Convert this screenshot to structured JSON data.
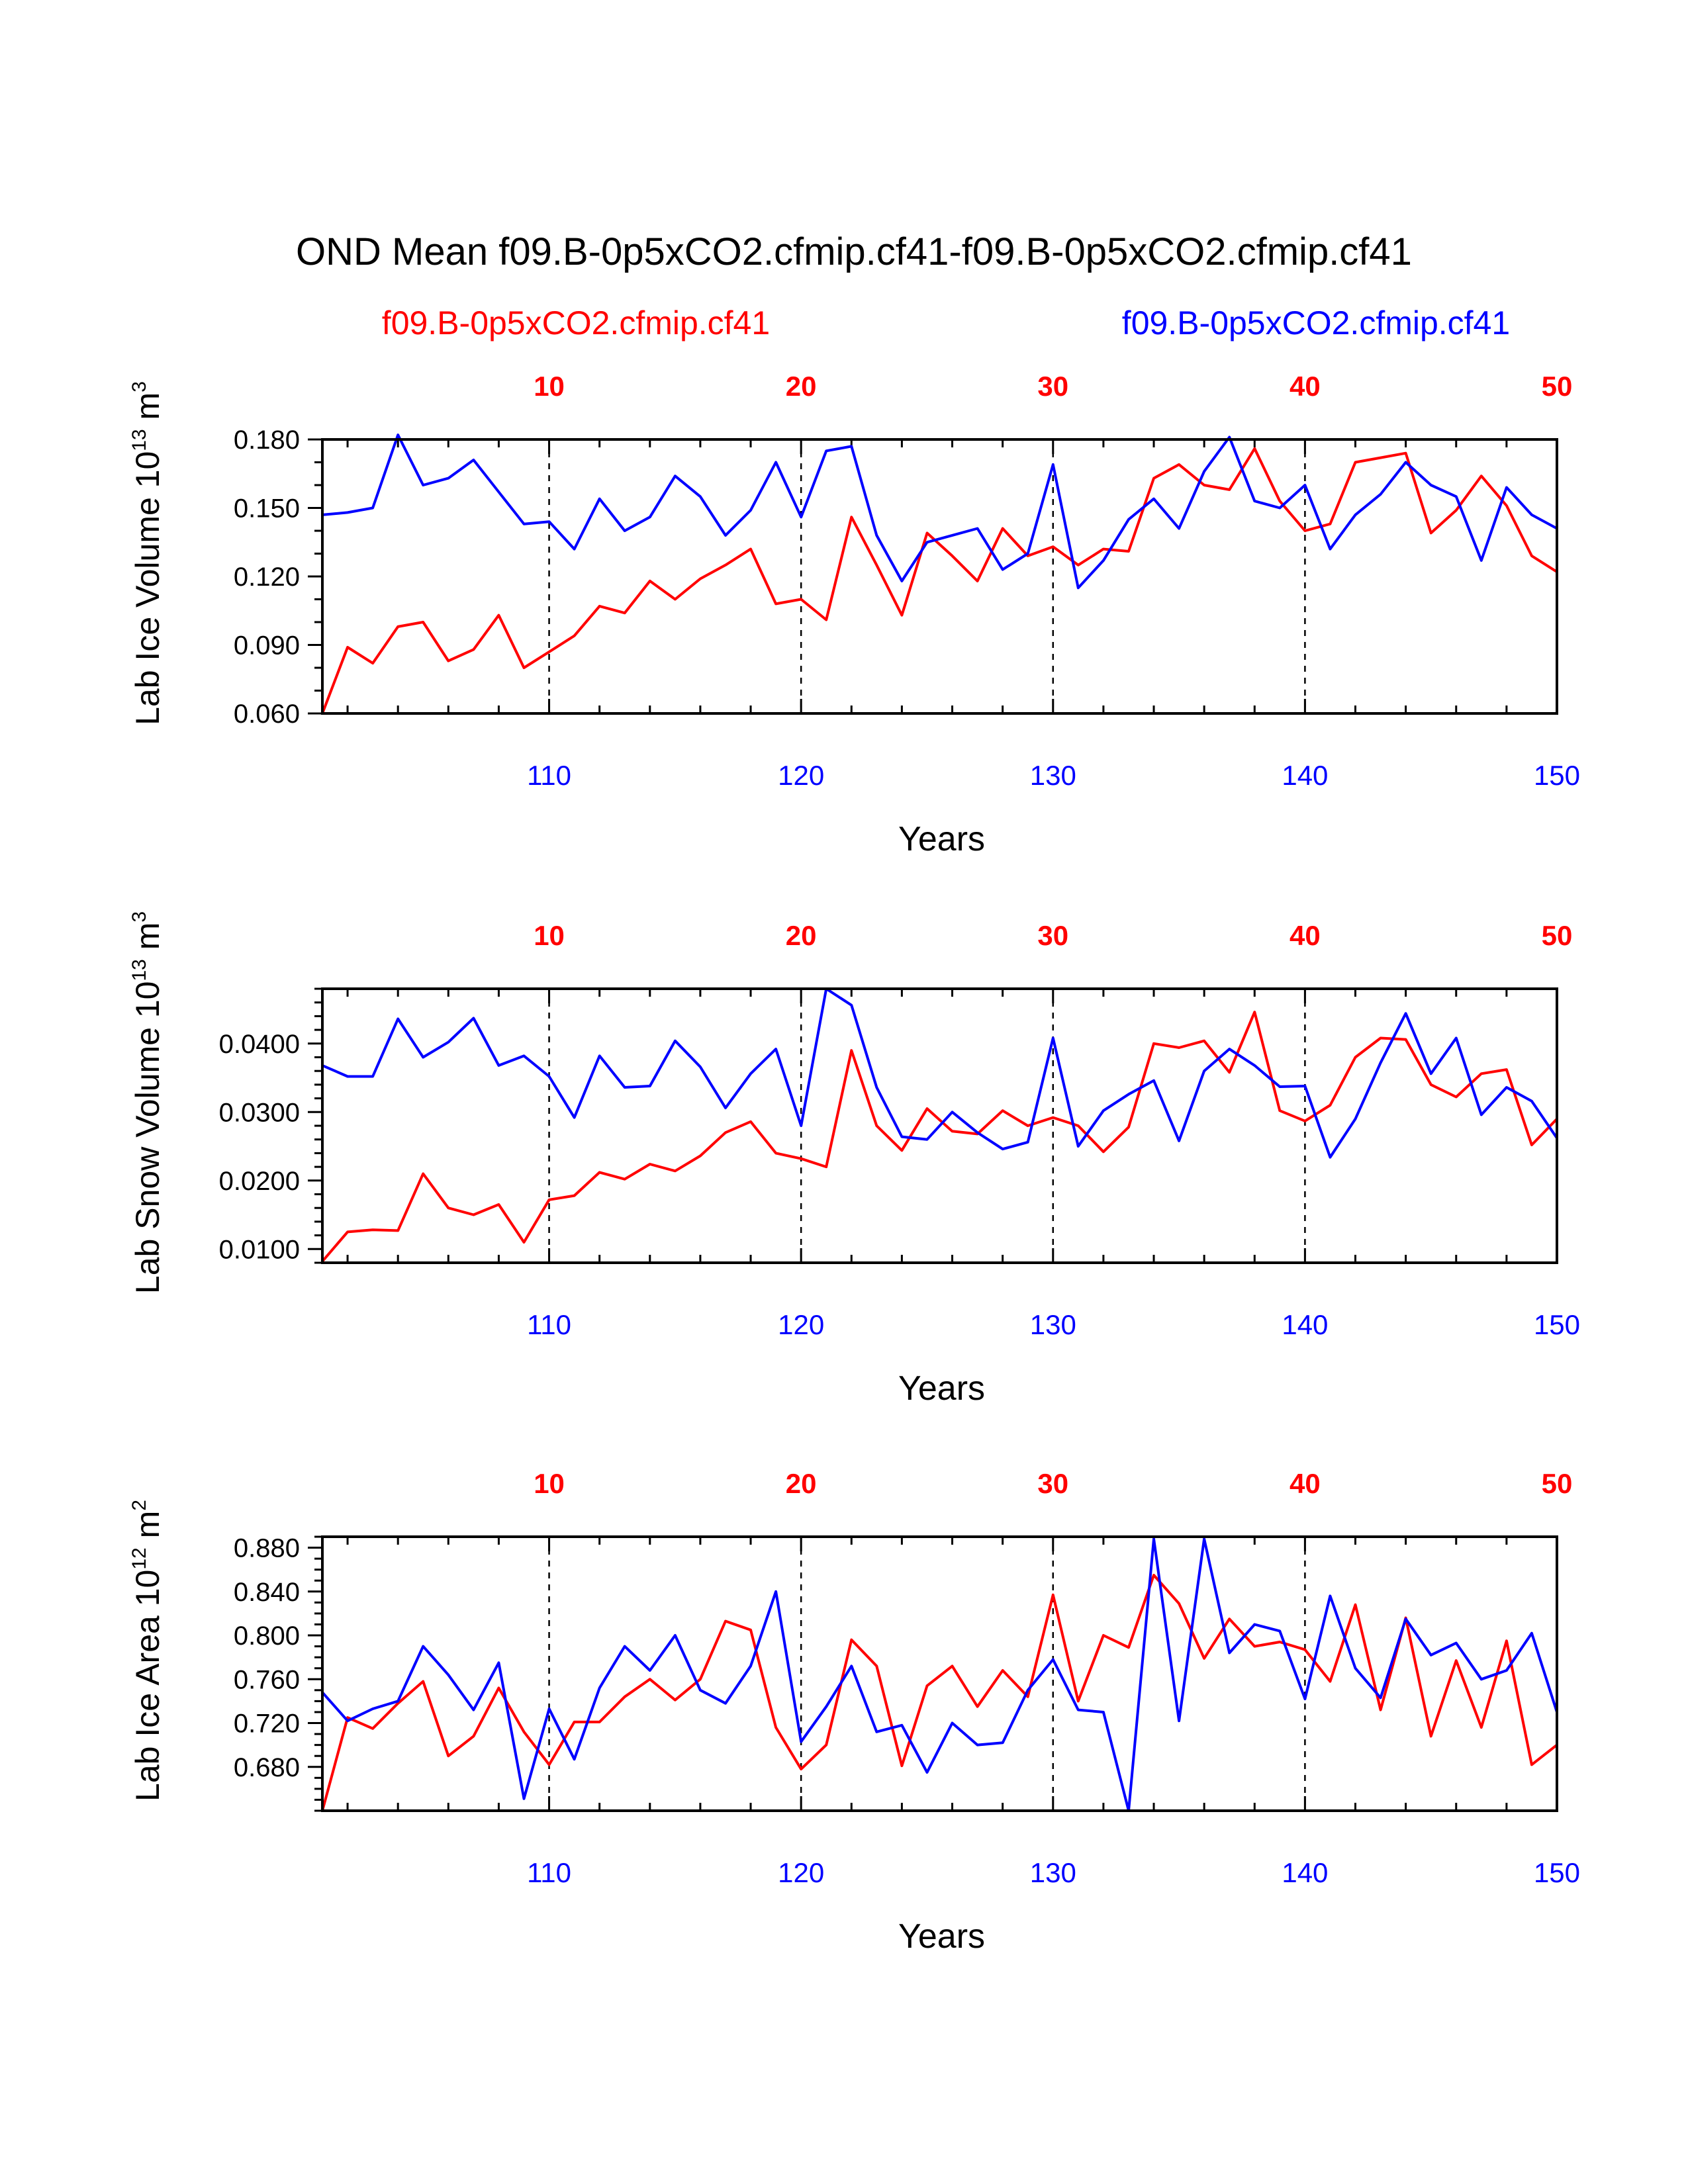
{
  "title": "OND Mean f09.B-0p5xCO2.cfmip.cf41-f09.B-0p5xCO2.cfmip.cf41",
  "legend": {
    "left": {
      "label": "f09.B-0p5xCO2.cfmip.cf41",
      "color": "#ff0000"
    },
    "right": {
      "label": "f09.B-0p5xCO2.cfmip.cf41",
      "color": "#0000ff"
    }
  },
  "colors": {
    "red": "#ff0000",
    "blue": "#0000ff",
    "axis": "#000000"
  },
  "chart_data": [
    {
      "type": "line",
      "ylabel": {
        "main": "Lab Ice Volume 10",
        "exp": "13",
        "unit": " m",
        "unit_exp": "3"
      },
      "xlabel": "Years",
      "xlim": [
        101,
        150
      ],
      "ylim": [
        0.06,
        0.18
      ],
      "yticks": [
        0.06,
        0.09,
        0.12,
        0.15,
        0.18
      ],
      "ytick_labels": [
        "0.060",
        "0.090",
        "0.120",
        "0.150",
        "0.180"
      ],
      "yminor": 0.01,
      "xticks_bottom": [
        "110",
        "120",
        "130",
        "140",
        "150"
      ],
      "xticks_top": [
        "10",
        "20",
        "30",
        "40",
        "50"
      ],
      "x": [
        101,
        102,
        103,
        104,
        105,
        106,
        107,
        108,
        109,
        110,
        111,
        112,
        113,
        114,
        115,
        116,
        117,
        118,
        119,
        120,
        121,
        122,
        123,
        124,
        125,
        126,
        127,
        128,
        129,
        130,
        131,
        132,
        133,
        134,
        135,
        136,
        137,
        138,
        139,
        140,
        141,
        142,
        143,
        144,
        145,
        146,
        147,
        148,
        149,
        150
      ],
      "series": [
        {
          "name": "f09.B-0p5xCO2.cfmip.cf41",
          "color": "red",
          "values": [
            0.06,
            0.089,
            0.082,
            0.098,
            0.1,
            0.083,
            0.088,
            0.103,
            0.08,
            0.087,
            0.094,
            0.107,
            0.104,
            0.118,
            0.11,
            0.119,
            0.125,
            0.132,
            0.108,
            0.11,
            0.101,
            0.146,
            0.125,
            0.103,
            0.139,
            0.129,
            0.118,
            0.141,
            0.129,
            0.133,
            0.125,
            0.132,
            0.131,
            0.163,
            0.169,
            0.16,
            0.158,
            0.176,
            0.153,
            0.14,
            0.143,
            0.17,
            0.172,
            0.174,
            0.139,
            0.149,
            0.164,
            0.151,
            0.129,
            0.122
          ]
        },
        {
          "name": "f09.B-0p5xCO2.cfmip.cf41",
          "color": "blue",
          "values": [
            0.147,
            0.148,
            0.15,
            0.182,
            0.16,
            0.163,
            0.171,
            0.157,
            0.143,
            0.144,
            0.132,
            0.154,
            0.14,
            0.146,
            0.164,
            0.155,
            0.138,
            0.149,
            0.17,
            0.146,
            0.175,
            0.177,
            0.138,
            0.118,
            0.135,
            0.138,
            0.141,
            0.123,
            0.13,
            0.169,
            0.115,
            0.127,
            0.145,
            0.154,
            0.141,
            0.166,
            0.181,
            0.153,
            0.15,
            0.16,
            0.132,
            0.147,
            0.156,
            0.17,
            0.16,
            0.155,
            0.127,
            0.159,
            0.147,
            0.141
          ]
        }
      ]
    },
    {
      "type": "line",
      "ylabel": {
        "main": "Lab Snow Volume 10",
        "exp": "13",
        "unit": " m",
        "unit_exp": "3"
      },
      "xlabel": "Years",
      "xlim": [
        101,
        150
      ],
      "ylim": [
        0.008,
        0.048
      ],
      "yticks": [
        0.01,
        0.02,
        0.03,
        0.04
      ],
      "ytick_labels": [
        "0.0100",
        "0.0200",
        "0.0300",
        "0.0400"
      ],
      "yminor": 0.002,
      "xticks_bottom": [
        "110",
        "120",
        "130",
        "140",
        "150"
      ],
      "xticks_top": [
        "10",
        "20",
        "30",
        "40",
        "50"
      ],
      "x": [
        101,
        102,
        103,
        104,
        105,
        106,
        107,
        108,
        109,
        110,
        111,
        112,
        113,
        114,
        115,
        116,
        117,
        118,
        119,
        120,
        121,
        122,
        123,
        124,
        125,
        126,
        127,
        128,
        129,
        130,
        131,
        132,
        133,
        134,
        135,
        136,
        137,
        138,
        139,
        140,
        141,
        142,
        143,
        144,
        145,
        146,
        147,
        148,
        149,
        150
      ],
      "series": [
        {
          "name": "f09.B-0p5xCO2.cfmip.cf41",
          "color": "red",
          "values": [
            0.0082,
            0.0125,
            0.0128,
            0.0127,
            0.021,
            0.016,
            0.015,
            0.0165,
            0.011,
            0.0172,
            0.0178,
            0.0212,
            0.0202,
            0.0224,
            0.0214,
            0.0236,
            0.027,
            0.0286,
            0.024,
            0.0232,
            0.022,
            0.039,
            0.028,
            0.0244,
            0.0305,
            0.0272,
            0.0268,
            0.0302,
            0.028,
            0.0292,
            0.028,
            0.0242,
            0.0278,
            0.04,
            0.0394,
            0.0404,
            0.0358,
            0.0446,
            0.0302,
            0.0287,
            0.031,
            0.038,
            0.0408,
            0.0406,
            0.034,
            0.0322,
            0.0356,
            0.0362,
            0.0252,
            0.029
          ]
        },
        {
          "name": "f09.B-0p5xCO2.cfmip.cf41",
          "color": "blue",
          "values": [
            0.0368,
            0.0352,
            0.0352,
            0.0436,
            0.038,
            0.0402,
            0.0437,
            0.0368,
            0.0382,
            0.0352,
            0.0292,
            0.0382,
            0.0336,
            0.0338,
            0.0404,
            0.0366,
            0.0306,
            0.0356,
            0.0392,
            0.028,
            0.048,
            0.0456,
            0.0336,
            0.0264,
            0.026,
            0.03,
            0.027,
            0.0246,
            0.0256,
            0.0408,
            0.025,
            0.0302,
            0.0326,
            0.0346,
            0.0258,
            0.036,
            0.0392,
            0.0368,
            0.0337,
            0.0338,
            0.0234,
            0.029,
            0.0372,
            0.0444,
            0.0356,
            0.0408,
            0.0296,
            0.0336,
            0.0316,
            0.0262
          ]
        }
      ]
    },
    {
      "type": "line",
      "ylabel": {
        "main": "Lab Ice Area 10",
        "exp": "12",
        "unit": " m",
        "unit_exp": "2"
      },
      "xlabel": "Years",
      "xlim": [
        101,
        150
      ],
      "ylim": [
        0.64,
        0.89
      ],
      "yticks": [
        0.68,
        0.72,
        0.76,
        0.8,
        0.84,
        0.88
      ],
      "ytick_labels": [
        "0.680",
        "0.720",
        "0.760",
        "0.800",
        "0.840",
        "0.880"
      ],
      "yminor": 0.01,
      "xticks_bottom": [
        "110",
        "120",
        "130",
        "140",
        "150"
      ],
      "xticks_top": [
        "10",
        "20",
        "30",
        "40",
        "50"
      ],
      "x": [
        101,
        102,
        103,
        104,
        105,
        106,
        107,
        108,
        109,
        110,
        111,
        112,
        113,
        114,
        115,
        116,
        117,
        118,
        119,
        120,
        121,
        122,
        123,
        124,
        125,
        126,
        127,
        128,
        129,
        130,
        131,
        132,
        133,
        134,
        135,
        136,
        137,
        138,
        139,
        140,
        141,
        142,
        143,
        144,
        145,
        146,
        147,
        148,
        149,
        150
      ],
      "series": [
        {
          "name": "f09.B-0p5xCO2.cfmip.cf41",
          "color": "red",
          "values": [
            0.64,
            0.725,
            0.715,
            0.738,
            0.758,
            0.69,
            0.708,
            0.752,
            0.712,
            0.682,
            0.721,
            0.721,
            0.744,
            0.76,
            0.741,
            0.76,
            0.813,
            0.805,
            0.716,
            0.678,
            0.7,
            0.796,
            0.772,
            0.681,
            0.754,
            0.772,
            0.735,
            0.768,
            0.744,
            0.837,
            0.74,
            0.8,
            0.789,
            0.855,
            0.829,
            0.779,
            0.815,
            0.79,
            0.794,
            0.787,
            0.758,
            0.828,
            0.732,
            0.816,
            0.708,
            0.777,
            0.716,
            0.795,
            0.682,
            0.7
          ]
        },
        {
          "name": "f09.B-0p5xCO2.cfmip.cf41",
          "color": "blue",
          "values": [
            0.748,
            0.722,
            0.733,
            0.74,
            0.79,
            0.764,
            0.732,
            0.775,
            0.651,
            0.733,
            0.687,
            0.752,
            0.79,
            0.768,
            0.8,
            0.75,
            0.738,
            0.772,
            0.84,
            0.703,
            0.735,
            0.772,
            0.712,
            0.718,
            0.675,
            0.72,
            0.7,
            0.702,
            0.75,
            0.778,
            0.732,
            0.73,
            0.64,
            0.888,
            0.722,
            0.888,
            0.784,
            0.81,
            0.804,
            0.742,
            0.836,
            0.77,
            0.743,
            0.815,
            0.782,
            0.793,
            0.76,
            0.768,
            0.802,
            0.73
          ]
        }
      ]
    }
  ]
}
